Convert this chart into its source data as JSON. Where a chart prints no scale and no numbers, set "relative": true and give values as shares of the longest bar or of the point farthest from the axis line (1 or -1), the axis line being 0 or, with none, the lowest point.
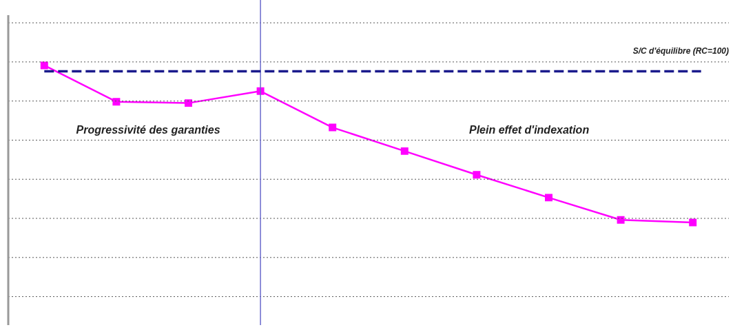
{
  "chart_data": {
    "type": "line",
    "relative": true,
    "categories": [
      null,
      null,
      null,
      null,
      null,
      null,
      null,
      null,
      null,
      null
    ],
    "series": [
      {
        "color": "#ff00ff",
        "values": [
          1,
          0.86,
          0.855,
          0.901,
          0.761,
          0.67,
          0.579,
          0.491,
          0.405,
          0.395
        ]
      }
    ],
    "marker": "square",
    "line_style": "solid",
    "grid": "y",
    "legend": false,
    "ref_lines": [
      {
        "axis": "y",
        "value": 0.977,
        "color": "#1a1a8c",
        "line_style": "dashed"
      }
    ],
    "annotations": [
      "S/C d'équilibre (RC=100)",
      "Progressivité des garanties",
      "Plein effet d'indexation"
    ]
  }
}
